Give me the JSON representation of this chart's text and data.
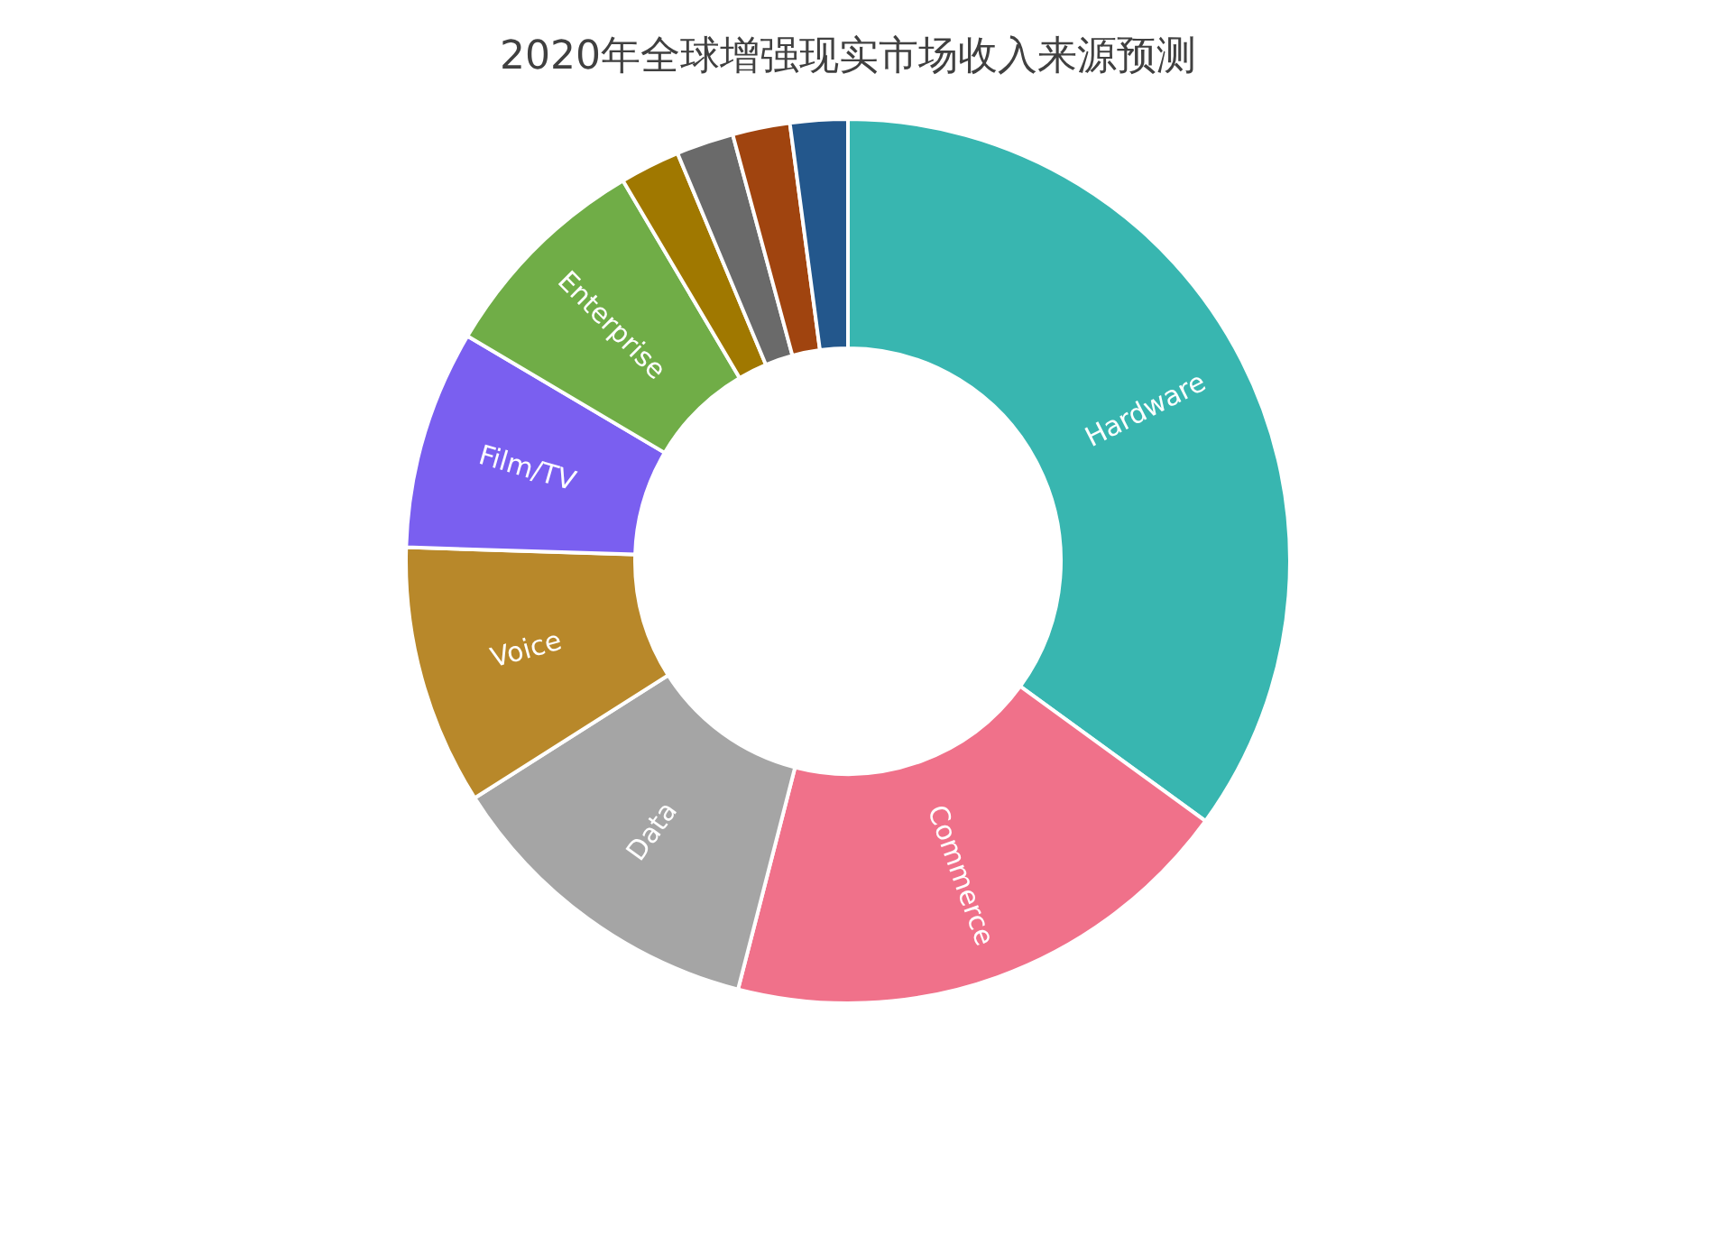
{
  "chart_data": {
    "type": "donut",
    "title": "2020年全球增强现实市场收入来源预测",
    "categories": [
      "Hardware",
      "Commerce",
      "Data",
      "Voice",
      "Film/TV",
      "Enterprise",
      null,
      null,
      null,
      null
    ],
    "values": [
      35,
      19,
      12,
      9.5,
      8,
      8,
      2.2,
      2.1,
      2.1,
      2.1
    ],
    "colors": [
      "#38b6b0",
      "#f0718a",
      "#a5a5a5",
      "#b8882a",
      "#7a5ff0",
      "#70ad47",
      "#a07800",
      "#6a6a6a",
      "#a0440f",
      "#23578c"
    ],
    "legend": false
  }
}
